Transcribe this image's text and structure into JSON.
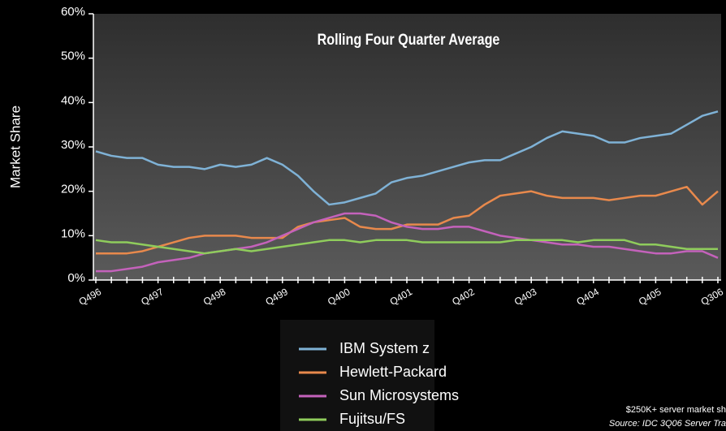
{
  "chart_data": {
    "type": "line",
    "title": "Rolling Four Quarter Average",
    "y_label": "Market Share",
    "footnote": "$250K+ server market sh",
    "source": "Source:  IDC 3Q06 Server Tra",
    "categories": [
      "Q496",
      null,
      null,
      null,
      "Q497",
      null,
      null,
      null,
      "Q498",
      null,
      null,
      null,
      "Q499",
      null,
      null,
      null,
      "Q400",
      null,
      null,
      null,
      "Q401",
      null,
      null,
      null,
      "Q402",
      null,
      null,
      null,
      "Q403",
      null,
      null,
      null,
      "Q404",
      null,
      null,
      null,
      "Q405",
      null,
      null,
      null,
      "Q306"
    ],
    "ylim": [
      0,
      60
    ],
    "yticks": [
      {
        "value": 0,
        "label": "0%"
      },
      {
        "value": 10,
        "label": "10%"
      },
      {
        "value": 20,
        "label": "20%"
      },
      {
        "value": 30,
        "label": "30%"
      },
      {
        "value": 40,
        "label": "40%"
      },
      {
        "value": 50,
        "label": "50%"
      },
      {
        "value": 60,
        "label": "60%"
      }
    ],
    "legend": "bottom",
    "series": [
      {
        "name": "IBM System z",
        "color": "#7fb2d6",
        "values": [
          29,
          28,
          27.5,
          27.5,
          26,
          25.5,
          25.5,
          25,
          26,
          25.5,
          26,
          27.5,
          26,
          23.5,
          20,
          17,
          17.5,
          18.5,
          19.5,
          22,
          23,
          23.5,
          24.5,
          25.5,
          26.5,
          27,
          27,
          28.5,
          30,
          32,
          33.5,
          33,
          32.5,
          31,
          31,
          32,
          32.5,
          33,
          35,
          37,
          38
        ]
      },
      {
        "name": "Hewlett-Packard",
        "color": "#e8894c",
        "values": [
          6,
          6,
          6,
          6.5,
          7.5,
          8.5,
          9.5,
          10,
          10,
          10,
          9.5,
          9.5,
          9.5,
          12,
          13,
          13.5,
          14,
          12,
          11.5,
          11.5,
          12.5,
          12.5,
          12.5,
          14,
          14.5,
          17,
          19,
          19.5,
          20,
          19,
          18.5,
          18.5,
          18.5,
          18,
          18.5,
          19,
          19,
          20,
          21,
          17,
          20
        ]
      },
      {
        "name": "Sun Microsystems",
        "color": "#c462bb",
        "values": [
          2,
          2,
          2.5,
          3,
          4,
          4.5,
          5,
          6,
          6.5,
          7,
          7.5,
          8.5,
          10,
          11.5,
          13,
          14,
          15,
          15,
          14.5,
          13,
          12,
          11.5,
          11.5,
          12,
          12,
          11,
          10,
          9.5,
          9,
          8.5,
          8,
          8,
          7.5,
          7.5,
          7,
          6.5,
          6,
          6,
          6.5,
          6.5,
          5
        ]
      },
      {
        "name": "Fujitsu/FS",
        "color": "#8fcc5c",
        "values": [
          9,
          8.5,
          8.5,
          8,
          7.5,
          7,
          6.5,
          6,
          6.5,
          7,
          6.5,
          7,
          7.5,
          8,
          8.5,
          9,
          9,
          8.5,
          9,
          9,
          9,
          8.5,
          8.5,
          8.5,
          8.5,
          8.5,
          8.5,
          9,
          9,
          9,
          9,
          8.5,
          9,
          9,
          9,
          8,
          8,
          7.5,
          7,
          7,
          7
        ]
      }
    ]
  }
}
